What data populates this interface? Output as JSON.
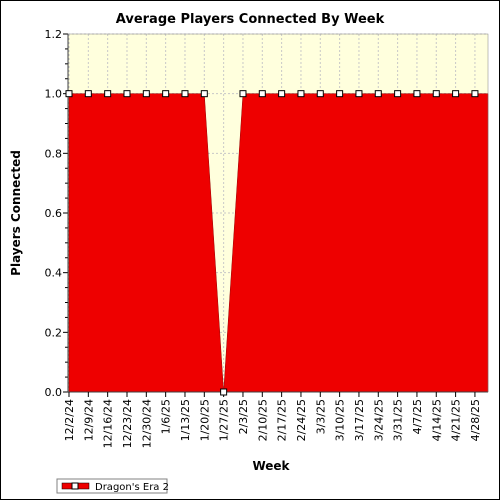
{
  "chart_data": {
    "type": "area",
    "title": "Average Players Connected By Week",
    "xlabel": "Week",
    "ylabel": "Players Connected",
    "categories": [
      "12/2/24",
      "12/9/24",
      "12/16/24",
      "12/23/24",
      "12/30/24",
      "1/6/25",
      "1/13/25",
      "1/20/25",
      "1/27/25",
      "2/3/25",
      "2/10/25",
      "2/17/25",
      "2/24/25",
      "3/3/25",
      "3/10/25",
      "3/17/25",
      "3/24/25",
      "3/31/25",
      "4/7/25",
      "4/14/25",
      "4/21/25",
      "4/28/25"
    ],
    "series": [
      {
        "name": "Dragon's Era 2",
        "values": [
          1,
          1,
          1,
          1,
          1,
          1,
          1,
          1,
          0,
          1,
          1,
          1,
          1,
          1,
          1,
          1,
          1,
          1,
          1,
          1,
          1,
          1
        ]
      }
    ],
    "ylim": [
      0,
      1.2
    ],
    "yticks": [
      "0.0",
      "0.2",
      "0.4",
      "0.6",
      "0.8",
      "1.0",
      "1.2"
    ],
    "grid": true,
    "legend": "bottom-left",
    "colors": {
      "area": "#ee0000",
      "plot_background": "#ffffdd",
      "grid": "#c8c8c8",
      "marker_fill": "#ffffff",
      "marker_stroke": "#000000"
    }
  }
}
